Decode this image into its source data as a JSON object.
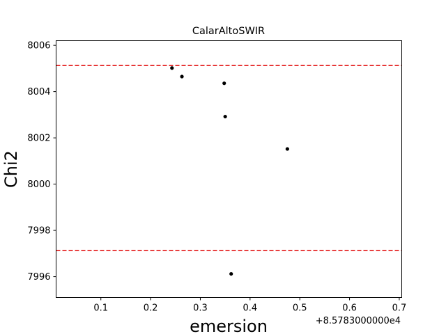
{
  "chart_data": {
    "type": "scatter",
    "title": "CalarAltoSWIR",
    "xlabel": "emersion",
    "ylabel": "Chi2",
    "x_offset_label": "+8.5783000000e4",
    "xlim": [
      0.01,
      0.705
    ],
    "ylim": [
      7995.1,
      8006.2
    ],
    "x_ticks": [
      0.1,
      0.2,
      0.3,
      0.4,
      0.5,
      0.6,
      0.7
    ],
    "x_tick_labels": [
      "0.1",
      "0.2",
      "0.3",
      "0.4",
      "0.5",
      "0.6",
      "0.7"
    ],
    "y_ticks": [
      7996,
      7998,
      8000,
      8002,
      8004,
      8006
    ],
    "y_tick_labels": [
      "7996",
      "7998",
      "8000",
      "8002",
      "8004",
      "8006"
    ],
    "grid": false,
    "series": [
      {
        "marker_color": "#000000",
        "points": [
          {
            "x": 0.243,
            "y": 8005.02
          },
          {
            "x": 0.263,
            "y": 8004.65
          },
          {
            "x": 0.348,
            "y": 8004.36
          },
          {
            "x": 0.35,
            "y": 8002.92
          },
          {
            "x": 0.475,
            "y": 8001.52
          },
          {
            "x": 0.362,
            "y": 7996.12
          }
        ]
      }
    ],
    "reference_lines": [
      {
        "y": 8005.13,
        "color": "#e00000",
        "style": "dashed"
      },
      {
        "y": 7997.13,
        "color": "#e00000",
        "style": "dashed"
      }
    ]
  }
}
